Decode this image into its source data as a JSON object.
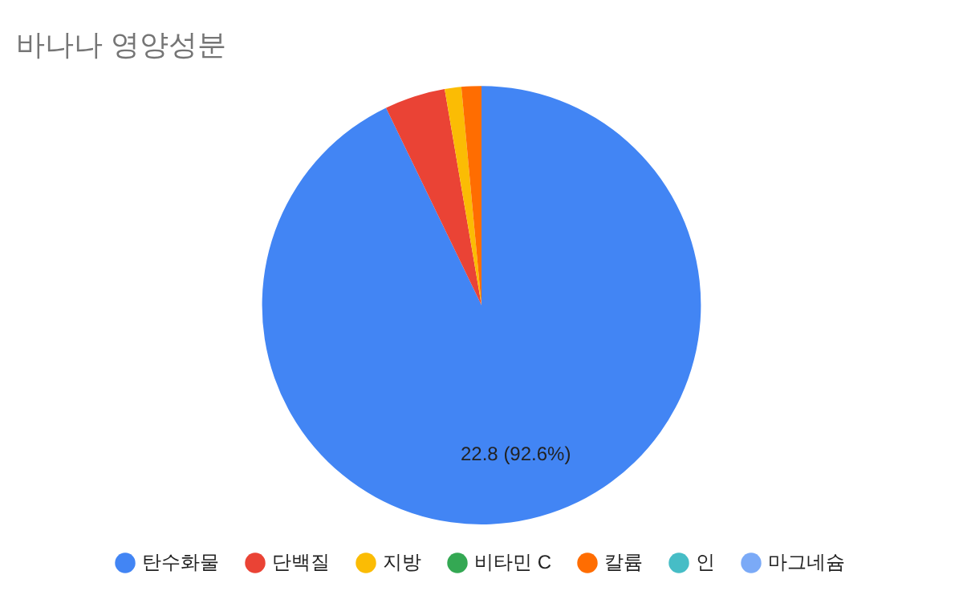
{
  "chart_data": {
    "type": "pie",
    "title": "바나나 영양성분",
    "categories": [
      "탄수화물",
      "단백질",
      "지방",
      "비타민 C",
      "칼륨",
      "인",
      "마그네슘"
    ],
    "values": [
      22.8,
      1.1,
      0.3,
      null,
      0.36,
      null,
      null
    ],
    "colors": [
      "#4285f4",
      "#ea4335",
      "#fbbc04",
      "#34a853",
      "#ff6d01",
      "#46bdc6",
      "#7baaf7"
    ],
    "value_labels": [
      "22.8 (92.6%)",
      null,
      null,
      null,
      null,
      null,
      null
    ],
    "legend": "bottom"
  }
}
